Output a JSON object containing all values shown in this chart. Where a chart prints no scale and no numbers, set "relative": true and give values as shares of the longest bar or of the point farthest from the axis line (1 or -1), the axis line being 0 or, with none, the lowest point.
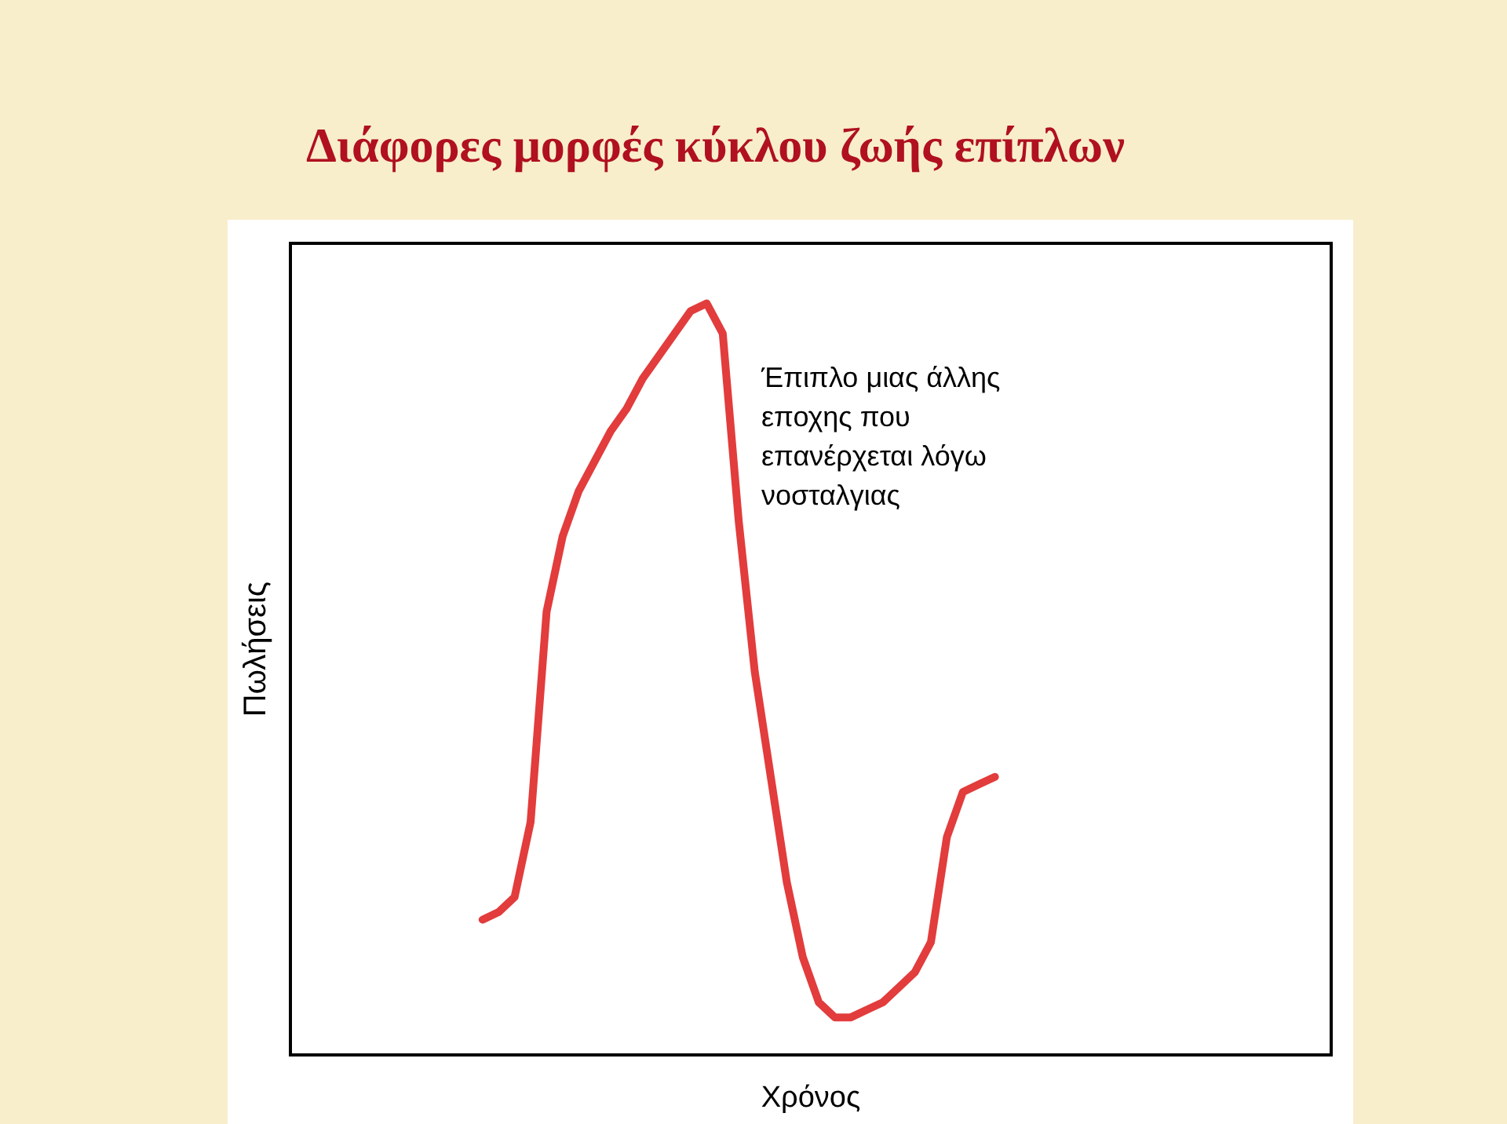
{
  "chart_data": {
    "type": "line",
    "title": "Διάφορες μορφές κύκλου ζωής επίπλων",
    "xlabel": "Χρόνος",
    "ylabel": "Πωλήσεις",
    "annotations": [
      "Έπιπλο μιας άλλης εποχης που επανέρχεται λόγω νοσταλγιας"
    ],
    "relative": true,
    "line_style": "solid",
    "categories": [
      null,
      null,
      null,
      null,
      null,
      null,
      null,
      null,
      null,
      null,
      null,
      null,
      null,
      null,
      null,
      null,
      null,
      null,
      null,
      null,
      null,
      null,
      null,
      null,
      null,
      null,
      null,
      null,
      null,
      null,
      null,
      null,
      null,
      null,
      null,
      null,
      null,
      null,
      null,
      null,
      null,
      null,
      null,
      null,
      null,
      null,
      null,
      null,
      null,
      null,
      null,
      null,
      null,
      null,
      null,
      null,
      null,
      null,
      null,
      null,
      null,
      null,
      null,
      null,
      null,
      null
    ],
    "series": [
      {
        "color": "#e23c3c",
        "values": [
          null,
          null,
          null,
          null,
          null,
          null,
          null,
          null,
          null,
          null,
          null,
          null,
          0.18,
          0.19,
          0.21,
          0.31,
          0.59,
          0.69,
          0.75,
          0.79,
          0.83,
          0.86,
          0.9,
          0.93,
          0.96,
          0.99,
          1,
          0.96,
          0.71,
          0.51,
          0.37,
          0.23,
          0.13,
          0.07,
          0.05,
          0.05,
          0.06,
          0.07,
          0.09,
          0.11,
          0.15,
          0.29,
          0.35,
          0.36,
          0.37,
          null,
          null,
          null,
          null,
          null,
          null,
          null,
          null,
          null,
          null,
          null,
          null,
          null,
          null,
          null,
          null,
          null,
          null,
          null,
          null,
          null
        ]
      }
    ]
  }
}
